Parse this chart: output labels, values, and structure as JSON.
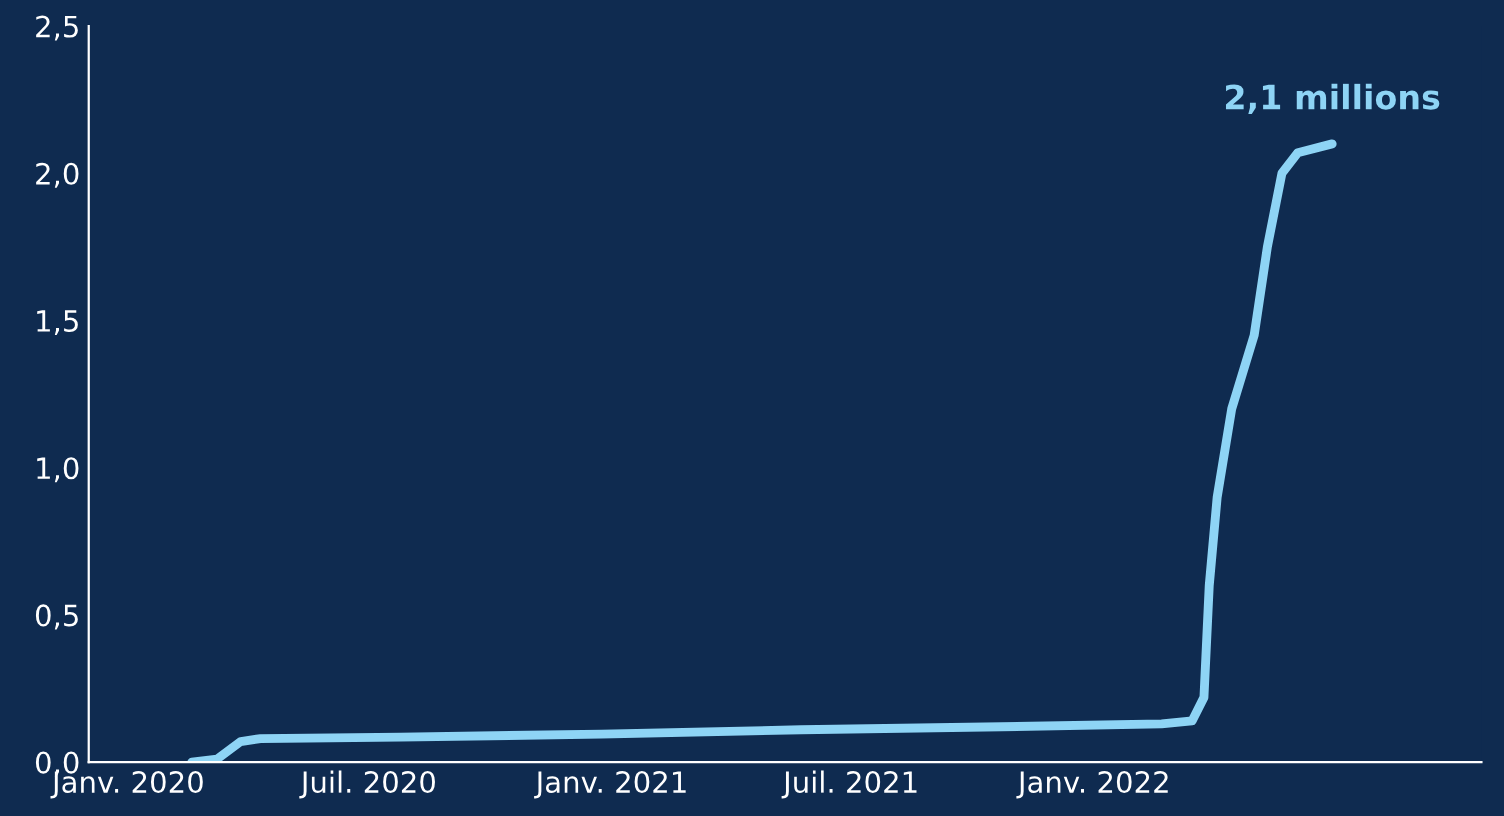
{
  "chart_data": {
    "type": "line",
    "x": [
      "2020-02-18",
      "2020-03-08",
      "2020-03-26",
      "2020-04-10",
      "2020-07-25",
      "2020-12-24",
      "2021-05-24",
      "2021-10-23",
      "2022-02-21",
      "2022-03-16",
      "2022-03-25",
      "2022-03-29",
      "2022-04-04",
      "2022-04-15",
      "2022-05-02",
      "2022-05-12",
      "2022-05-23",
      "2022-06-04",
      "2022-06-30"
    ],
    "series": [
      {
        "color": "#8ed4f5",
        "values": [
          0,
          0.01,
          0.07,
          0.08,
          0.085,
          0.095,
          0.11,
          0.12,
          0.13,
          0.14,
          0.22,
          0.6,
          0.9,
          1.2,
          1.45,
          1.75,
          2.0,
          2.07,
          2.1
        ]
      }
    ],
    "annotations": [
      {
        "text": "2,1 millions",
        "x": "2022-06-30",
        "y": 2.1
      }
    ],
    "xlim": [
      "2019-12-02",
      "2022-10-21"
    ],
    "xticks": [
      {
        "value": "2020-01-01",
        "label": "Janv. 2020"
      },
      {
        "value": "2020-07-01",
        "label": "Juil. 2020"
      },
      {
        "value": "2021-01-01",
        "label": "Janv. 2021"
      },
      {
        "value": "2021-07-01",
        "label": "Juil. 2021"
      },
      {
        "value": "2022-01-01",
        "label": "Janv. 2022"
      }
    ],
    "ylim": [
      0,
      2.5
    ],
    "yticks": [
      {
        "value": 0,
        "label": "0,0"
      },
      {
        "value": 0.5,
        "label": "0,5"
      },
      {
        "value": 1,
        "label": "1,0"
      },
      {
        "value": 1.5,
        "label": "1,5"
      },
      {
        "value": 2,
        "label": "2,0"
      },
      {
        "value": 2.5,
        "label": "2,5"
      }
    ],
    "grid": false,
    "legend": false,
    "marker": "none",
    "line_style": "solid"
  }
}
